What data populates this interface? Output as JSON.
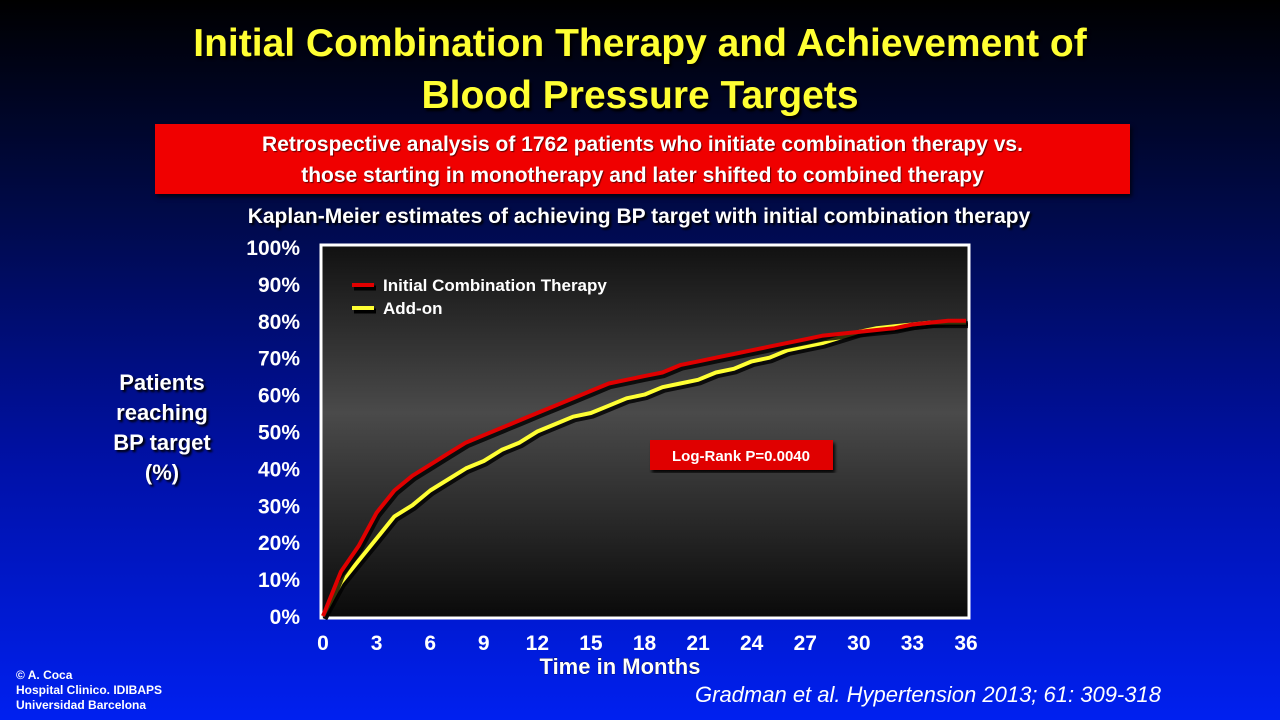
{
  "slide": {
    "title_line1": "Initial Combination Therapy and Achievement of",
    "title_line2": "Blood Pressure Targets",
    "banner_line1": "Retrospective analysis of 1762 patients who initiate combination therapy vs.",
    "banner_line2": "those starting in monotherapy and later shifted to combined therapy",
    "chart_caption": "Kaplan-Meier estimates of achieving BP target with initial combination therapy",
    "ylabel_lines": [
      "Patients",
      "reaching",
      "BP target",
      "(%)"
    ],
    "credit_lines": [
      "© A. Coca",
      "Hospital Clinico. IDIBAPS",
      "Universidad Barcelona"
    ],
    "citation": "Gradman et al. Hypertension 2013; 61: 309-318",
    "colors": {
      "title": "#ffff33",
      "banner": "#f00000",
      "series_initial": "#e00000",
      "series_addon": "#ffff33",
      "logrank_box": "#e00000"
    }
  },
  "chart_data": {
    "type": "line",
    "title": "Kaplan-Meier estimates of achieving BP target with initial combination therapy",
    "xlabel": "Time in Months",
    "ylabel": "Patients reaching BP target (%)",
    "xlim": [
      0,
      36
    ],
    "ylim": [
      0,
      100
    ],
    "x_ticks": [
      "0",
      "3",
      "6",
      "9",
      "12",
      "15",
      "18",
      "21",
      "24",
      "27",
      "30",
      "33",
      "36"
    ],
    "y_ticks": [
      "0%",
      "10%",
      "20%",
      "30%",
      "40%",
      "50%",
      "60%",
      "70%",
      "80%",
      "90%",
      "100%"
    ],
    "legend_position": "top-left",
    "annotation": "Log-Rank P=0.0040",
    "series": [
      {
        "name": "Initial Combination Therapy",
        "color": "#e00000",
        "x": [
          0,
          1,
          2,
          3,
          4,
          5,
          6,
          7,
          8,
          9,
          10,
          11,
          12,
          13,
          14,
          15,
          16,
          17,
          18,
          19,
          20,
          21,
          22,
          23,
          24,
          25,
          26,
          27,
          28,
          29,
          30,
          31,
          32,
          33,
          34,
          35,
          36
        ],
        "y": [
          0,
          12,
          19,
          28,
          34,
          38,
          41,
          44,
          47,
          49,
          51,
          53,
          55,
          57,
          59,
          61,
          63,
          64,
          65,
          66,
          68,
          69,
          70,
          71,
          72,
          73,
          74,
          75,
          76,
          76.5,
          77,
          77.5,
          78,
          79,
          79.5,
          80,
          80
        ]
      },
      {
        "name": "Add-on",
        "color": "#ffff33",
        "x": [
          0,
          1,
          2,
          3,
          4,
          5,
          6,
          7,
          8,
          9,
          10,
          11,
          12,
          13,
          14,
          15,
          16,
          17,
          18,
          19,
          20,
          21,
          22,
          23,
          24,
          25,
          26,
          27,
          28,
          29,
          30,
          31,
          32,
          33,
          34,
          35,
          36
        ],
        "y": [
          0,
          9,
          15,
          21,
          27,
          30,
          34,
          37,
          40,
          42,
          45,
          47,
          50,
          52,
          54,
          55,
          57,
          59,
          60,
          62,
          63,
          64,
          66,
          67,
          69,
          70,
          72,
          73,
          74,
          75.5,
          77,
          78,
          78.5,
          79,
          79.5,
          79.5,
          79.5
        ]
      }
    ]
  }
}
